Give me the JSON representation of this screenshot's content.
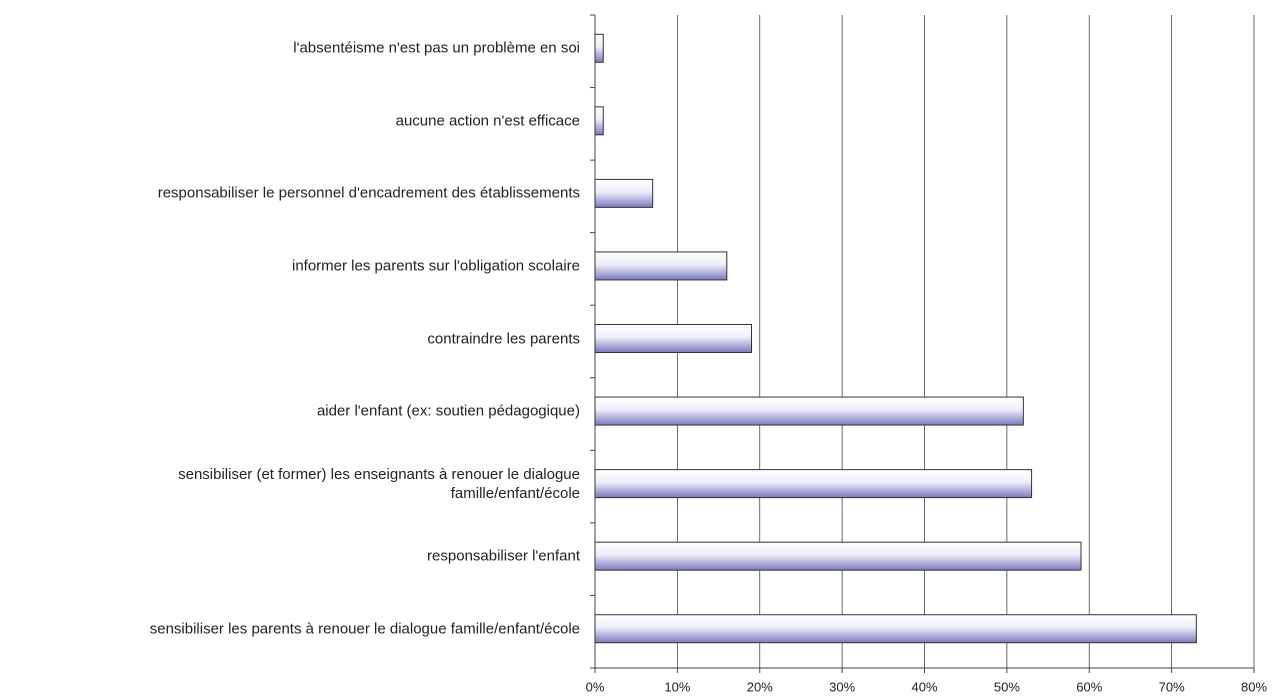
{
  "chart_data": {
    "type": "barh",
    "categories": [
      "l'absentéisme n'est pas un problème en soi",
      "aucune action n'est efficace",
      "responsabiliser le personnel d'encadrement des établissements",
      "informer les parents sur l'obligation scolaire",
      "contraindre les parents",
      "aider l'enfant (ex: soutien pédagogique)",
      "sensibiliser (et former) les enseignants à renouer le dialogue\nfamille/enfant/école",
      "responsabiliser l'enfant",
      "sensibiliser les parents à renouer le dialogue famille/enfant/école"
    ],
    "values": [
      1,
      1,
      7,
      16,
      19,
      52,
      53,
      59,
      73
    ],
    "color": "#7a78bd",
    "xlim": [
      0,
      80
    ],
    "xticks": [
      {
        "value": 0,
        "label": "0%"
      },
      {
        "value": 10,
        "label": "10%"
      },
      {
        "value": 20,
        "label": "20%"
      },
      {
        "value": 30,
        "label": "30%"
      },
      {
        "value": 40,
        "label": "40%"
      },
      {
        "value": 50,
        "label": "50%"
      },
      {
        "value": 60,
        "label": "60%"
      },
      {
        "value": 70,
        "label": "70%"
      },
      {
        "value": 80,
        "label": "80%"
      }
    ],
    "grid": true
  }
}
